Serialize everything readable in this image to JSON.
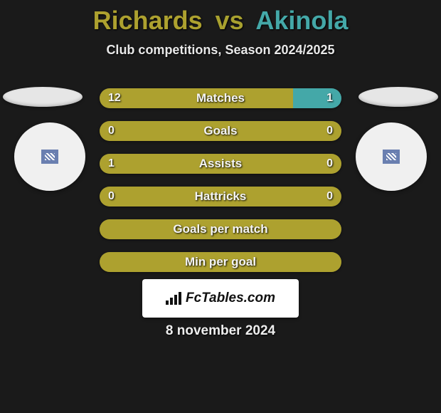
{
  "title": {
    "player1": "Richards",
    "vs": "vs",
    "player2": "Akinola"
  },
  "subtitle": "Club competitions, Season 2024/2025",
  "colors": {
    "player1": "#ada12f",
    "player2": "#44a8a8",
    "bg": "#1a1a1a",
    "bar_bg": "#2a2a2a",
    "text": "#f4f4f4"
  },
  "bars": [
    {
      "label": "Matches",
      "left_val": "12",
      "right_val": "1",
      "left_pct": 80,
      "right_pct": 20
    },
    {
      "label": "Goals",
      "left_val": "0",
      "right_val": "0",
      "left_pct": 100,
      "right_pct": 0
    },
    {
      "label": "Assists",
      "left_val": "1",
      "right_val": "0",
      "left_pct": 100,
      "right_pct": 0
    },
    {
      "label": "Hattricks",
      "left_val": "0",
      "right_val": "0",
      "left_pct": 100,
      "right_pct": 0
    },
    {
      "label": "Goals per match",
      "left_val": "",
      "right_val": "",
      "left_pct": 100,
      "right_pct": 0
    },
    {
      "label": "Min per goal",
      "left_val": "",
      "right_val": "",
      "left_pct": 100,
      "right_pct": 0
    }
  ],
  "footer_brand": "FcTables.com",
  "date": "8 november 2024"
}
